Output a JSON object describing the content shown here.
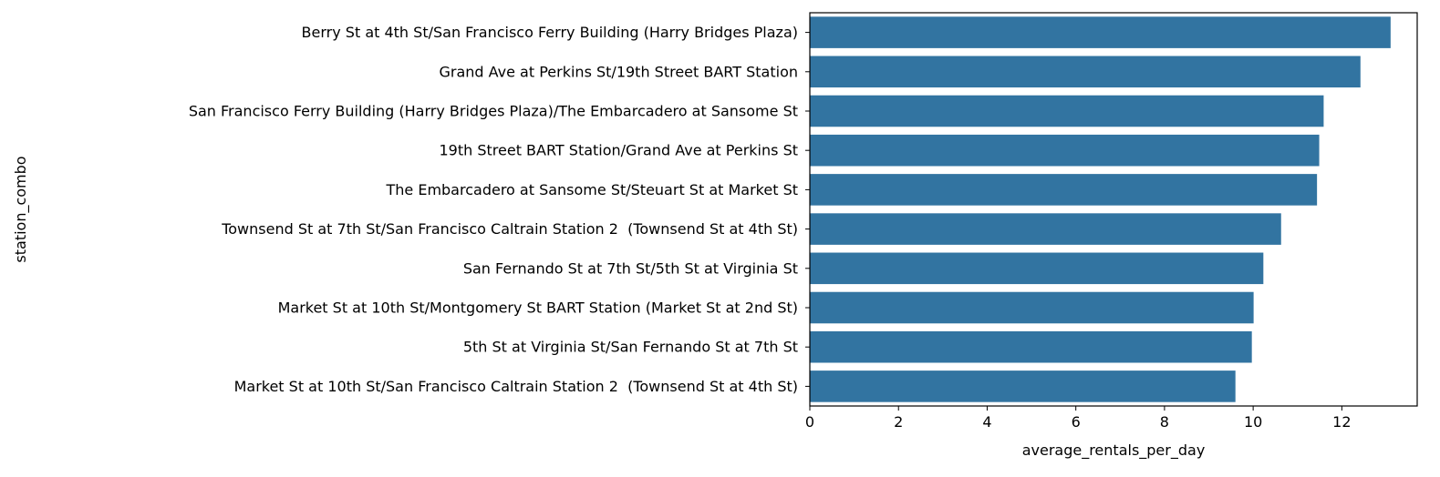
{
  "chart_data": {
    "type": "bar",
    "orientation": "horizontal",
    "title": "",
    "xlabel": "average_rentals_per_day",
    "ylabel": "station_combo",
    "xlim": [
      0,
      13.7
    ],
    "xticks": [
      0,
      2,
      4,
      6,
      8,
      10,
      12
    ],
    "grid": false,
    "bar_color": "#3274a1",
    "categories": [
      "Berry St at 4th St/San Francisco Ferry Building (Harry Bridges Plaza)",
      "Grand Ave at Perkins St/19th Street BART Station",
      "San Francisco Ferry Building (Harry Bridges Plaza)/The Embarcadero at Sansome St",
      "19th Street BART Station/Grand Ave at Perkins St",
      "The Embarcadero at Sansome St/Steuart St at Market St",
      "Townsend St at 7th St/San Francisco Caltrain Station 2  (Townsend St at 4th St)",
      "San Fernando St at 7th St/5th St at Virginia St",
      "Market St at 10th St/Montgomery St BART Station (Market St at 2nd St)",
      "5th St at Virginia St/San Fernando St at 7th St",
      "Market St at 10th St/San Francisco Caltrain Station 2  (Townsend St at 4th St)"
    ],
    "values": [
      13.1,
      12.42,
      11.59,
      11.49,
      11.44,
      10.63,
      10.23,
      10.01,
      9.97,
      9.6
    ]
  }
}
